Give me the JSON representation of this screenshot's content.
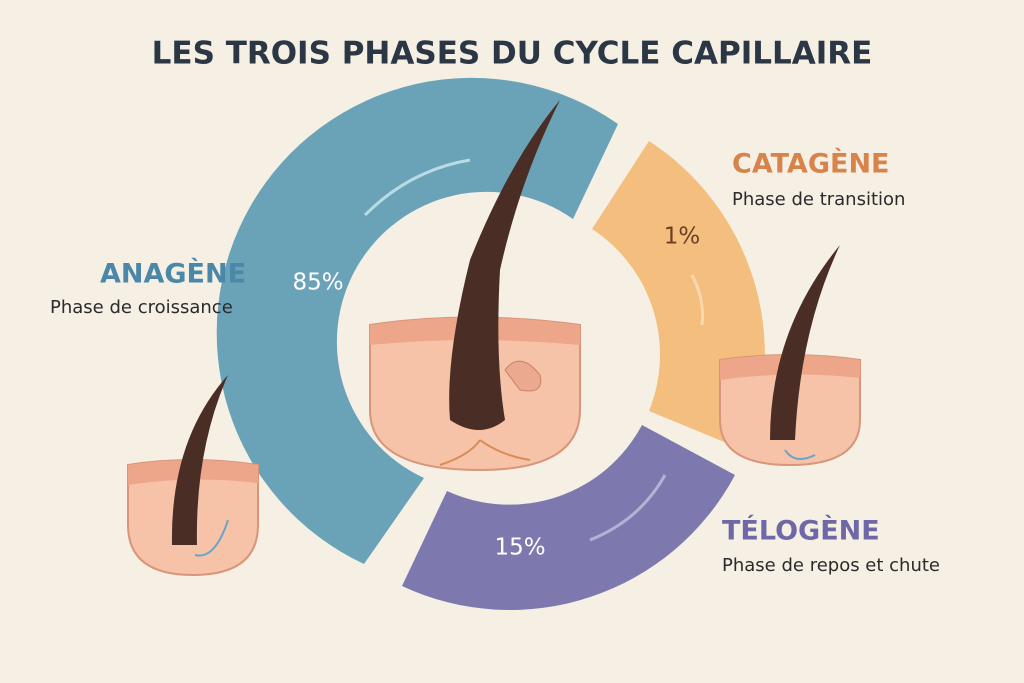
{
  "title": "LES TROIS PHASES DU CYCLE CAPILLAIRE",
  "phases": [
    {
      "name": "ANAGÈNE",
      "description": "Phase de croissance",
      "percent": "85%"
    },
    {
      "name": "CATAGÈNE",
      "description": "Phase de transition",
      "percent": "1%"
    },
    {
      "name": "TÉLOGÈNE",
      "description": "Phase de repos et chute",
      "percent": "15%"
    }
  ]
}
